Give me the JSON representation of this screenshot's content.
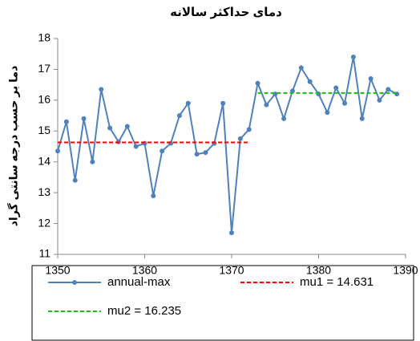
{
  "chart_data": {
    "type": "line",
    "title": "دمای حداکثر سالانه",
    "y_label": "دما بر حسب درجه سانتی گراد",
    "x": [
      1350,
      1351,
      1352,
      1353,
      1354,
      1355,
      1356,
      1357,
      1358,
      1359,
      1360,
      1361,
      1362,
      1363,
      1364,
      1365,
      1366,
      1367,
      1368,
      1369,
      1370,
      1371,
      1372,
      1373,
      1374,
      1375,
      1376,
      1377,
      1378,
      1379,
      1380,
      1381,
      1382,
      1383,
      1384,
      1385,
      1386,
      1387,
      1388,
      1389
    ],
    "series": [
      {
        "name": "annual-max",
        "color": "#4f81bd",
        "style": "solid",
        "marker": true,
        "values": [
          14.35,
          15.3,
          13.4,
          15.4,
          14.0,
          16.35,
          15.1,
          14.65,
          15.15,
          14.5,
          14.6,
          12.9,
          14.35,
          14.6,
          15.5,
          15.9,
          14.25,
          14.3,
          14.6,
          15.9,
          11.7,
          14.75,
          15.05,
          16.55,
          15.85,
          16.2,
          15.4,
          16.3,
          17.05,
          16.6,
          16.2,
          15.6,
          16.4,
          15.9,
          17.4,
          15.4,
          16.7,
          16.0,
          16.35,
          16.2
        ]
      },
      {
        "name": "mu1 = 14.631",
        "color": "#ff0000",
        "style": "dashed",
        "marker": false,
        "values": [
          14.631,
          14.631,
          14.631,
          14.631,
          14.631,
          14.631,
          14.631,
          14.631,
          14.631,
          14.631,
          14.631,
          14.631,
          14.631,
          14.631,
          14.631,
          14.631,
          14.631,
          14.631,
          14.631,
          14.631,
          14.631,
          14.631,
          14.631,
          null,
          null,
          null,
          null,
          null,
          null,
          null,
          null,
          null,
          null,
          null,
          null,
          null,
          null,
          null,
          null,
          null
        ]
      },
      {
        "name": "mu2 = 16.235",
        "color": "#22bb22",
        "style": "dashed",
        "marker": false,
        "values": [
          null,
          null,
          null,
          null,
          null,
          null,
          null,
          null,
          null,
          null,
          null,
          null,
          null,
          null,
          null,
          null,
          null,
          null,
          null,
          null,
          null,
          null,
          null,
          16.235,
          16.235,
          16.235,
          16.235,
          16.235,
          16.235,
          16.235,
          16.235,
          16.235,
          16.235,
          16.235,
          16.235,
          16.235,
          16.235,
          16.235,
          16.235,
          16.235
        ]
      }
    ],
    "xlim": [
      1350,
      1390
    ],
    "xticks": [
      1350,
      1360,
      1370,
      1380,
      1390
    ],
    "ylim": [
      11,
      18
    ],
    "yticks": [
      11,
      12,
      13,
      14,
      15,
      16,
      17,
      18
    ],
    "grid": false,
    "legend": "bottom"
  }
}
